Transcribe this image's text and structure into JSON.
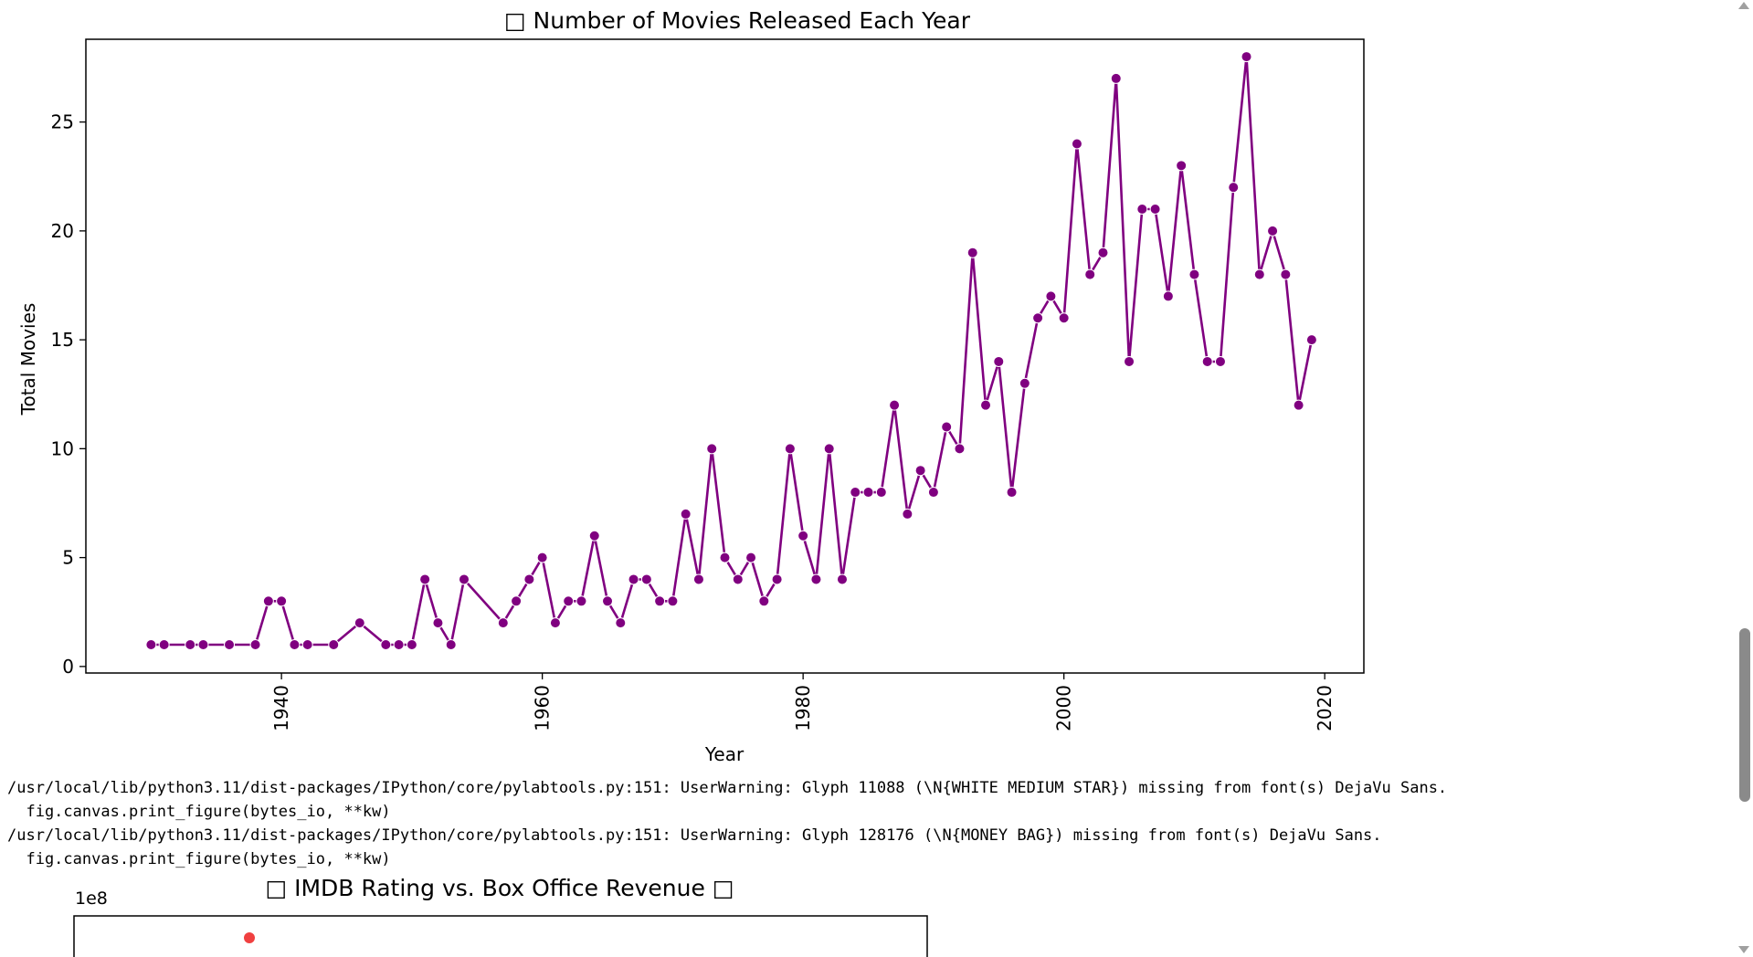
{
  "chart_data": [
    {
      "type": "line",
      "title": "□ Number of Movies Released Each Year",
      "xlabel": "Year",
      "ylabel": "Total Movies",
      "xlim": [
        1925,
        2023
      ],
      "ylim": [
        -0.3,
        28.8
      ],
      "xticks": [
        1940,
        1960,
        1980,
        2000,
        2020
      ],
      "yticks": [
        0,
        5,
        10,
        15,
        20,
        25
      ],
      "grid": false,
      "color": "#800080",
      "series": [
        {
          "x": [
            1930,
            1931,
            1933,
            1934,
            1936,
            1938,
            1939,
            1940,
            1941,
            1942,
            1944,
            1946,
            1948,
            1949,
            1950,
            1951,
            1952,
            1953,
            1954,
            1957,
            1958,
            1959,
            1960,
            1961,
            1962,
            1963,
            1964,
            1965,
            1966,
            1967,
            1968,
            1969,
            1970,
            1971,
            1972,
            1973,
            1974,
            1975,
            1976,
            1977,
            1978,
            1979,
            1980,
            1981,
            1982,
            1983,
            1984,
            1985,
            1986,
            1987,
            1988,
            1989,
            1990,
            1991,
            1992,
            1993,
            1994,
            1995,
            1996,
            1997,
            1998,
            1999,
            2000,
            2001,
            2002,
            2003,
            2004,
            2005,
            2006,
            2007,
            2008,
            2009,
            2010,
            2011,
            2012,
            2013,
            2014,
            2015,
            2016,
            2017,
            2018,
            2019
          ],
          "y": [
            1,
            1,
            1,
            1,
            1,
            1,
            3,
            3,
            1,
            1,
            1,
            2,
            1,
            1,
            1,
            4,
            2,
            1,
            4,
            2,
            3,
            4,
            5,
            2,
            3,
            3,
            6,
            3,
            2,
            4,
            4,
            3,
            3,
            7,
            4,
            10,
            5,
            4,
            5,
            3,
            4,
            10,
            6,
            4,
            10,
            4,
            8,
            8,
            8,
            12,
            7,
            9,
            8,
            11,
            10,
            19,
            12,
            14,
            8,
            13,
            16,
            17,
            16,
            24,
            18,
            19,
            27,
            14,
            21,
            21,
            17,
            23,
            18,
            14,
            14,
            22,
            28,
            18,
            20,
            18,
            12,
            15
          ]
        }
      ]
    },
    {
      "type": "scatter",
      "title": "□ IMDB Rating vs. Box Office Revenue □",
      "offset_label": "1e8",
      "color": "#f04040",
      "visible_points": 1
    }
  ],
  "warnings": [
    "/usr/local/lib/python3.11/dist-packages/IPython/core/pylabtools.py:151: UserWarning: Glyph 11088 (\\N{WHITE MEDIUM STAR}) missing from font(s) DejaVu Sans.",
    "  fig.canvas.print_figure(bytes_io, **kw)",
    "/usr/local/lib/python3.11/dist-packages/IPython/core/pylabtools.py:151: UserWarning: Glyph 128176 (\\N{MONEY BAG}) missing from font(s) DejaVu Sans.",
    "  fig.canvas.print_figure(bytes_io, **kw)"
  ]
}
